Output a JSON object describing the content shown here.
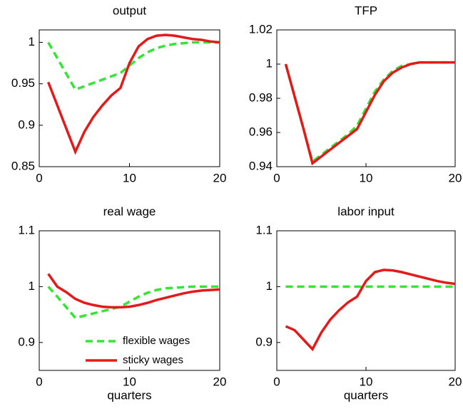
{
  "chart_data": [
    {
      "type": "line",
      "title": "output",
      "x": [
        1,
        2,
        3,
        4,
        5,
        6,
        7,
        8,
        9,
        10,
        11,
        12,
        13,
        14,
        15,
        16,
        17,
        18,
        19,
        20
      ],
      "xlim": [
        0,
        20
      ],
      "xticks": [
        0,
        10,
        20
      ],
      "ylim": [
        0.85,
        1.015
      ],
      "yticks": [
        0.85,
        0.9,
        0.95,
        1
      ],
      "series": [
        {
          "color": "#33e633",
          "dash": true,
          "values": [
            1.0,
            0.981,
            0.962,
            0.943,
            0.947,
            0.951,
            0.955,
            0.959,
            0.963,
            0.972,
            0.981,
            0.988,
            0.993,
            0.996,
            0.998,
            0.999,
            1.0,
            1.0,
            1.0,
            1.0
          ]
        },
        {
          "color": "#e41a1a",
          "dash": false,
          "values": [
            0.952,
            0.924,
            0.896,
            0.868,
            0.892,
            0.91,
            0.924,
            0.936,
            0.945,
            0.975,
            0.995,
            1.004,
            1.008,
            1.009,
            1.008,
            1.006,
            1.004,
            1.003,
            1.001,
            1.0
          ]
        }
      ]
    },
    {
      "type": "line",
      "title": "TFP",
      "x": [
        1,
        2,
        3,
        4,
        5,
        6,
        7,
        8,
        9,
        10,
        11,
        12,
        13,
        14,
        15,
        16,
        17,
        18,
        19,
        20
      ],
      "xlim": [
        0,
        20
      ],
      "xticks": [
        0,
        10,
        20
      ],
      "ylim": [
        0.94,
        1.02
      ],
      "yticks": [
        0.94,
        0.96,
        0.98,
        1,
        1.02
      ],
      "series": [
        {
          "color": "#33e633",
          "dash": true,
          "values": [
            1.0,
            0.981,
            0.962,
            0.943,
            0.947,
            0.951,
            0.955,
            0.959,
            0.964,
            0.974,
            0.984,
            0.991,
            0.996,
            0.999,
            1.0,
            1.001,
            1.001,
            1.001,
            1.001,
            1.001
          ]
        },
        {
          "color": "#e41a1a",
          "dash": false,
          "values": [
            1.0,
            0.981,
            0.962,
            0.942,
            0.946,
            0.95,
            0.954,
            0.958,
            0.962,
            0.972,
            0.982,
            0.99,
            0.995,
            0.998,
            1.0,
            1.001,
            1.001,
            1.001,
            1.001,
            1.001
          ]
        }
      ]
    },
    {
      "type": "line",
      "title": "real wage",
      "xlabel": "quarters",
      "x": [
        1,
        2,
        3,
        4,
        5,
        6,
        7,
        8,
        9,
        10,
        11,
        12,
        13,
        14,
        15,
        16,
        17,
        18,
        19,
        20
      ],
      "xlim": [
        0,
        20
      ],
      "xticks": [
        0,
        10,
        20
      ],
      "ylim": [
        0.85,
        1.1
      ],
      "yticks": [
        0.9,
        1,
        1.1
      ],
      "legend": "lower right",
      "series": [
        {
          "name": "flexible wages",
          "color": "#33e633",
          "dash": true,
          "values": [
            1.0,
            0.982,
            0.963,
            0.944,
            0.948,
            0.952,
            0.956,
            0.96,
            0.964,
            0.973,
            0.982,
            0.989,
            0.994,
            0.997,
            0.998,
            0.999,
            1.0,
            1.0,
            1.0,
            1.0
          ]
        },
        {
          "name": "sticky wages",
          "color": "#e41a1a",
          "dash": false,
          "values": [
            1.023,
            1.0,
            0.99,
            0.978,
            0.971,
            0.967,
            0.964,
            0.963,
            0.963,
            0.964,
            0.967,
            0.971,
            0.976,
            0.98,
            0.984,
            0.988,
            0.991,
            0.993,
            0.994,
            0.995
          ]
        }
      ]
    },
    {
      "type": "line",
      "title": "labor input",
      "xlabel": "quarters",
      "x": [
        1,
        2,
        3,
        4,
        5,
        6,
        7,
        8,
        9,
        10,
        11,
        12,
        13,
        14,
        15,
        16,
        17,
        18,
        19,
        20
      ],
      "xlim": [
        0,
        20
      ],
      "xticks": [
        0,
        10,
        20
      ],
      "ylim": [
        0.85,
        1.1
      ],
      "yticks": [
        0.9,
        1,
        1.1
      ],
      "series": [
        {
          "color": "#33e633",
          "dash": true,
          "values": [
            1,
            1,
            1,
            1,
            1,
            1,
            1,
            1,
            1,
            1,
            1,
            1,
            1,
            1,
            1,
            1,
            1,
            1,
            1,
            1
          ]
        },
        {
          "color": "#e41a1a",
          "dash": false,
          "values": [
            0.929,
            0.922,
            0.905,
            0.888,
            0.918,
            0.941,
            0.958,
            0.972,
            0.982,
            1.01,
            1.026,
            1.03,
            1.029,
            1.026,
            1.022,
            1.018,
            1.014,
            1.01,
            1.007,
            1.005
          ]
        }
      ]
    }
  ]
}
